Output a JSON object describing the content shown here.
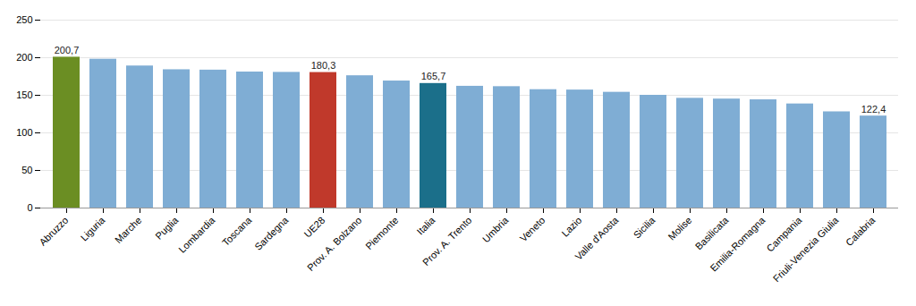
{
  "chart_data": {
    "type": "bar",
    "categories": [
      "Abruzzo",
      "Liguria",
      "Marche",
      "Puglia",
      "Lombardia",
      "Toscana",
      "Sardegna",
      "UE28",
      "Prov. A. Bolzano",
      "Piemonte",
      "Italia",
      "Prov. A. Trento",
      "Umbria",
      "Veneto",
      "Lazio",
      "Valle d'Aosta",
      "Sicilia",
      "Molise",
      "Basilicata",
      "Emilia-Romagna",
      "Campania",
      "Friuli-Venezia Giulia",
      "Calabria"
    ],
    "values": [
      200.7,
      198.0,
      189.0,
      184.0,
      183.5,
      181.0,
      180.5,
      180.3,
      176.0,
      169.0,
      165.7,
      162.0,
      161.5,
      157.5,
      157.0,
      154.0,
      150.0,
      146.0,
      145.0,
      144.0,
      138.5,
      128.0,
      122.4
    ],
    "value_labels": [
      "200,7",
      null,
      null,
      null,
      null,
      null,
      null,
      "180,3",
      null,
      null,
      "165,7",
      null,
      null,
      null,
      null,
      null,
      null,
      null,
      null,
      null,
      null,
      null,
      "122,4"
    ],
    "data_labels": true,
    "colors": [
      "#6b8e23",
      "#7fadd4",
      "#7fadd4",
      "#7fadd4",
      "#7fadd4",
      "#7fadd4",
      "#7fadd4",
      "#c0392b",
      "#7fadd4",
      "#7fadd4",
      "#1b6f8a",
      "#7fadd4",
      "#7fadd4",
      "#7fadd4",
      "#7fadd4",
      "#7fadd4",
      "#7fadd4",
      "#7fadd4",
      "#7fadd4",
      "#7fadd4",
      "#7fadd4",
      "#7fadd4",
      "#7fadd4"
    ],
    "ylim": [
      0,
      250
    ],
    "yticks": [
      0,
      50,
      100,
      150,
      200,
      250
    ],
    "grid": true
  }
}
